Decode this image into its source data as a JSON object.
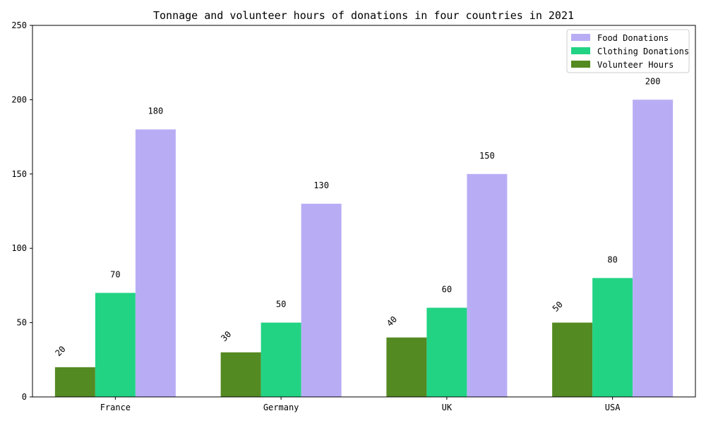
{
  "chart_data": {
    "type": "bar",
    "title": "Tonnage and volunteer hours of donations in four countries in 2021",
    "xlabel": "",
    "ylabel": "",
    "categories": [
      "France",
      "Germany",
      "UK",
      "USA"
    ],
    "ylim": [
      0,
      250
    ],
    "yticks": [
      0,
      50,
      100,
      150,
      200,
      250
    ],
    "grid": false,
    "legend_position": "top-right",
    "series": [
      {
        "name": "Volunteer Hours",
        "values": [
          20,
          30,
          40,
          50
        ],
        "color": "#548a22",
        "label_rotated": true
      },
      {
        "name": "Clothing Donations",
        "values": [
          70,
          50,
          60,
          80
        ],
        "color": "#22d384",
        "label_rotated": false
      },
      {
        "name": "Food Donations",
        "values": [
          180,
          130,
          150,
          200
        ],
        "color": "#b8adf5",
        "label_rotated": false
      }
    ],
    "legend_order": [
      "Food Donations",
      "Clothing Donations",
      "Volunteer Hours"
    ]
  }
}
